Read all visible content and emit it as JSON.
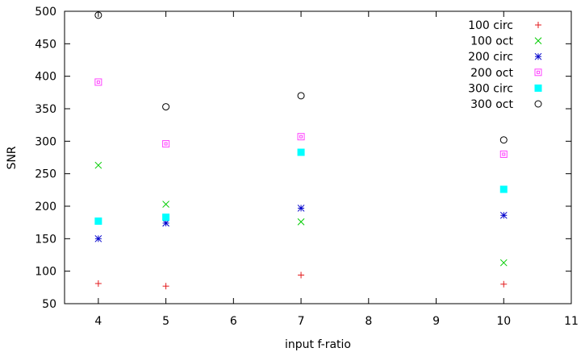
{
  "chart_data": {
    "type": "scatter",
    "title": "",
    "xlabel": "input f-ratio",
    "ylabel": "SNR",
    "xlim": [
      3.5,
      11
    ],
    "ylim": [
      50,
      500
    ],
    "xticks": [
      4,
      5,
      6,
      7,
      8,
      9,
      10,
      11
    ],
    "yticks": [
      50,
      100,
      150,
      200,
      250,
      300,
      350,
      400,
      450,
      500
    ],
    "xtick_labels": [
      "4",
      "5",
      "6",
      "7",
      "8",
      "9",
      "10",
      "11"
    ],
    "ytick_labels": [
      "50",
      "100",
      "150",
      "200",
      "250",
      "300",
      "350",
      "400",
      "450",
      "500"
    ],
    "grid": false,
    "legend_position": "top-right",
    "series": [
      {
        "name": "100 circ",
        "marker": "plus",
        "color": "#e31a1c",
        "points": [
          {
            "x": 4,
            "y": 81
          },
          {
            "x": 5,
            "y": 77
          },
          {
            "x": 7,
            "y": 94
          },
          {
            "x": 10,
            "y": 80
          }
        ]
      },
      {
        "name": "100 oct",
        "marker": "cross",
        "color": "#00cc00",
        "points": [
          {
            "x": 4,
            "y": 263
          },
          {
            "x": 5,
            "y": 203
          },
          {
            "x": 7,
            "y": 176
          },
          {
            "x": 10,
            "y": 113
          }
        ]
      },
      {
        "name": "200 circ",
        "marker": "star",
        "color": "#0000cc",
        "points": [
          {
            "x": 4,
            "y": 150
          },
          {
            "x": 5,
            "y": 174
          },
          {
            "x": 7,
            "y": 197
          },
          {
            "x": 10,
            "y": 186
          }
        ]
      },
      {
        "name": "200 oct",
        "marker": "open-square",
        "color": "#ff44ff",
        "points": [
          {
            "x": 4,
            "y": 391
          },
          {
            "x": 5,
            "y": 296
          },
          {
            "x": 7,
            "y": 307
          },
          {
            "x": 10,
            "y": 280
          }
        ]
      },
      {
        "name": "300 circ",
        "marker": "filled-square",
        "color": "#00ffff",
        "points": [
          {
            "x": 4,
            "y": 177
          },
          {
            "x": 5,
            "y": 183
          },
          {
            "x": 7,
            "y": 283
          },
          {
            "x": 10,
            "y": 226
          }
        ]
      },
      {
        "name": "300 oct",
        "marker": "open-circle",
        "color": "#000000",
        "points": [
          {
            "x": 4,
            "y": 494
          },
          {
            "x": 5,
            "y": 353
          },
          {
            "x": 7,
            "y": 370
          },
          {
            "x": 10,
            "y": 302
          }
        ]
      }
    ]
  }
}
